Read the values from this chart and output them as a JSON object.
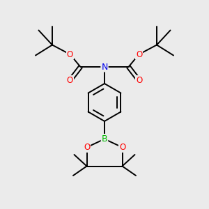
{
  "background_color": "#ebebeb",
  "atom_colors": {
    "C": "#000000",
    "N": "#0000ee",
    "O": "#ff0000",
    "B": "#00bb00"
  },
  "line_color": "#000000",
  "line_width": 1.4,
  "figsize": [
    3.0,
    3.0
  ],
  "dpi": 100,
  "xlim": [
    0,
    10
  ],
  "ylim": [
    0,
    10
  ]
}
